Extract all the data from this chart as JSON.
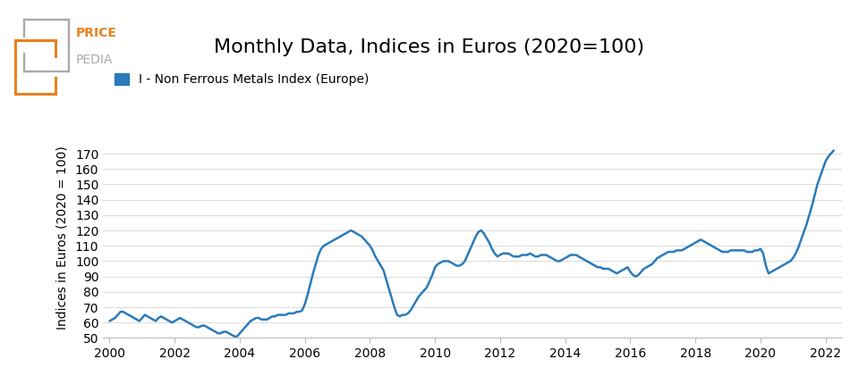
{
  "title": "Monthly Data, Indices in Euros (2020=100)",
  "ylabel": "Indices in Euros (2020 = 100)",
  "legend_label": "I - Non Ferrous Metals Index (Europe)",
  "line_color": "#2b7bba",
  "line_width": 1.8,
  "ylim": [
    50,
    180
  ],
  "yticks": [
    50,
    60,
    70,
    80,
    90,
    100,
    110,
    120,
    130,
    140,
    150,
    160,
    170
  ],
  "background_color": "#ffffff",
  "dates": [
    2000.0,
    2000.083,
    2000.167,
    2000.25,
    2000.333,
    2000.417,
    2000.5,
    2000.583,
    2000.667,
    2000.75,
    2000.833,
    2000.917,
    2001.0,
    2001.083,
    2001.167,
    2001.25,
    2001.333,
    2001.417,
    2001.5,
    2001.583,
    2001.667,
    2001.75,
    2001.833,
    2001.917,
    2002.0,
    2002.083,
    2002.167,
    2002.25,
    2002.333,
    2002.417,
    2002.5,
    2002.583,
    2002.667,
    2002.75,
    2002.833,
    2002.917,
    2003.0,
    2003.083,
    2003.167,
    2003.25,
    2003.333,
    2003.417,
    2003.5,
    2003.583,
    2003.667,
    2003.75,
    2003.833,
    2003.917,
    2004.0,
    2004.083,
    2004.167,
    2004.25,
    2004.333,
    2004.417,
    2004.5,
    2004.583,
    2004.667,
    2004.75,
    2004.833,
    2004.917,
    2005.0,
    2005.083,
    2005.167,
    2005.25,
    2005.333,
    2005.417,
    2005.5,
    2005.583,
    2005.667,
    2005.75,
    2005.833,
    2005.917,
    2006.0,
    2006.083,
    2006.167,
    2006.25,
    2006.333,
    2006.417,
    2006.5,
    2006.583,
    2006.667,
    2006.75,
    2006.833,
    2006.917,
    2007.0,
    2007.083,
    2007.167,
    2007.25,
    2007.333,
    2007.417,
    2007.5,
    2007.583,
    2007.667,
    2007.75,
    2007.833,
    2007.917,
    2008.0,
    2008.083,
    2008.167,
    2008.25,
    2008.333,
    2008.417,
    2008.5,
    2008.583,
    2008.667,
    2008.75,
    2008.833,
    2008.917,
    2009.0,
    2009.083,
    2009.167,
    2009.25,
    2009.333,
    2009.417,
    2009.5,
    2009.583,
    2009.667,
    2009.75,
    2009.833,
    2009.917,
    2010.0,
    2010.083,
    2010.167,
    2010.25,
    2010.333,
    2010.417,
    2010.5,
    2010.583,
    2010.667,
    2010.75,
    2010.833,
    2010.917,
    2011.0,
    2011.083,
    2011.167,
    2011.25,
    2011.333,
    2011.417,
    2011.5,
    2011.583,
    2011.667,
    2011.75,
    2011.833,
    2011.917,
    2012.0,
    2012.083,
    2012.167,
    2012.25,
    2012.333,
    2012.417,
    2012.5,
    2012.583,
    2012.667,
    2012.75,
    2012.833,
    2012.917,
    2013.0,
    2013.083,
    2013.167,
    2013.25,
    2013.333,
    2013.417,
    2013.5,
    2013.583,
    2013.667,
    2013.75,
    2013.833,
    2013.917,
    2014.0,
    2014.083,
    2014.167,
    2014.25,
    2014.333,
    2014.417,
    2014.5,
    2014.583,
    2014.667,
    2014.75,
    2014.833,
    2014.917,
    2015.0,
    2015.083,
    2015.167,
    2015.25,
    2015.333,
    2015.417,
    2015.5,
    2015.583,
    2015.667,
    2015.75,
    2015.833,
    2015.917,
    2016.0,
    2016.083,
    2016.167,
    2016.25,
    2016.333,
    2016.417,
    2016.5,
    2016.583,
    2016.667,
    2016.75,
    2016.833,
    2016.917,
    2017.0,
    2017.083,
    2017.167,
    2017.25,
    2017.333,
    2017.417,
    2017.5,
    2017.583,
    2017.667,
    2017.75,
    2017.833,
    2017.917,
    2018.0,
    2018.083,
    2018.167,
    2018.25,
    2018.333,
    2018.417,
    2018.5,
    2018.583,
    2018.667,
    2018.75,
    2018.833,
    2018.917,
    2019.0,
    2019.083,
    2019.167,
    2019.25,
    2019.333,
    2019.417,
    2019.5,
    2019.583,
    2019.667,
    2019.75,
    2019.833,
    2019.917,
    2020.0,
    2020.083,
    2020.167,
    2020.25,
    2020.333,
    2020.417,
    2020.5,
    2020.583,
    2020.667,
    2020.75,
    2020.833,
    2020.917,
    2021.0,
    2021.083,
    2021.167,
    2021.25,
    2021.333,
    2021.417,
    2021.5,
    2021.583,
    2021.667,
    2021.75,
    2021.833,
    2021.917,
    2022.0,
    2022.083,
    2022.167,
    2022.25
  ],
  "values": [
    61,
    62,
    63,
    65,
    67,
    67,
    66,
    65,
    64,
    63,
    62,
    61,
    63,
    65,
    64,
    63,
    62,
    61,
    63,
    64,
    63,
    62,
    61,
    60,
    61,
    62,
    63,
    62,
    61,
    60,
    59,
    58,
    57,
    57,
    58,
    58,
    57,
    56,
    55,
    54,
    53,
    53,
    54,
    54,
    53,
    52,
    51,
    51,
    53,
    55,
    57,
    59,
    61,
    62,
    63,
    63,
    62,
    62,
    62,
    63,
    64,
    64,
    65,
    65,
    65,
    65,
    66,
    66,
    66,
    67,
    67,
    68,
    72,
    78,
    85,
    92,
    98,
    104,
    108,
    110,
    111,
    112,
    113,
    114,
    115,
    116,
    117,
    118,
    119,
    120,
    119,
    118,
    117,
    116,
    114,
    112,
    110,
    107,
    103,
    100,
    97,
    94,
    88,
    82,
    76,
    70,
    65,
    64,
    65,
    65,
    66,
    68,
    71,
    74,
    77,
    79,
    81,
    83,
    87,
    91,
    96,
    98,
    99,
    100,
    100,
    100,
    99,
    98,
    97,
    97,
    98,
    100,
    104,
    108,
    112,
    116,
    119,
    120,
    118,
    115,
    112,
    108,
    105,
    103,
    104,
    105,
    105,
    105,
    104,
    103,
    103,
    103,
    104,
    104,
    104,
    105,
    104,
    103,
    103,
    104,
    104,
    104,
    103,
    102,
    101,
    100,
    100,
    101,
    102,
    103,
    104,
    104,
    104,
    103,
    102,
    101,
    100,
    99,
    98,
    97,
    96,
    96,
    95,
    95,
    95,
    94,
    93,
    92,
    93,
    94,
    95,
    96,
    93,
    91,
    90,
    91,
    93,
    95,
    96,
    97,
    98,
    100,
    102,
    103,
    104,
    105,
    106,
    106,
    106,
    107,
    107,
    107,
    108,
    109,
    110,
    111,
    112,
    113,
    114,
    113,
    112,
    111,
    110,
    109,
    108,
    107,
    106,
    106,
    106,
    107,
    107,
    107,
    107,
    107,
    107,
    106,
    106,
    106,
    107,
    107,
    108,
    105,
    97,
    92,
    93,
    94,
    95,
    96,
    97,
    98,
    99,
    100,
    102,
    105,
    109,
    114,
    119,
    124,
    130,
    136,
    143,
    150,
    155,
    160,
    165,
    168,
    170,
    172
  ],
  "xticks": [
    2000,
    2002,
    2004,
    2006,
    2008,
    2010,
    2012,
    2014,
    2016,
    2018,
    2020,
    2022
  ],
  "xlim": [
    1999.8,
    2022.5
  ],
  "logo_colors": {
    "orange": "#e8821e",
    "gray": "#aaaaaa"
  }
}
